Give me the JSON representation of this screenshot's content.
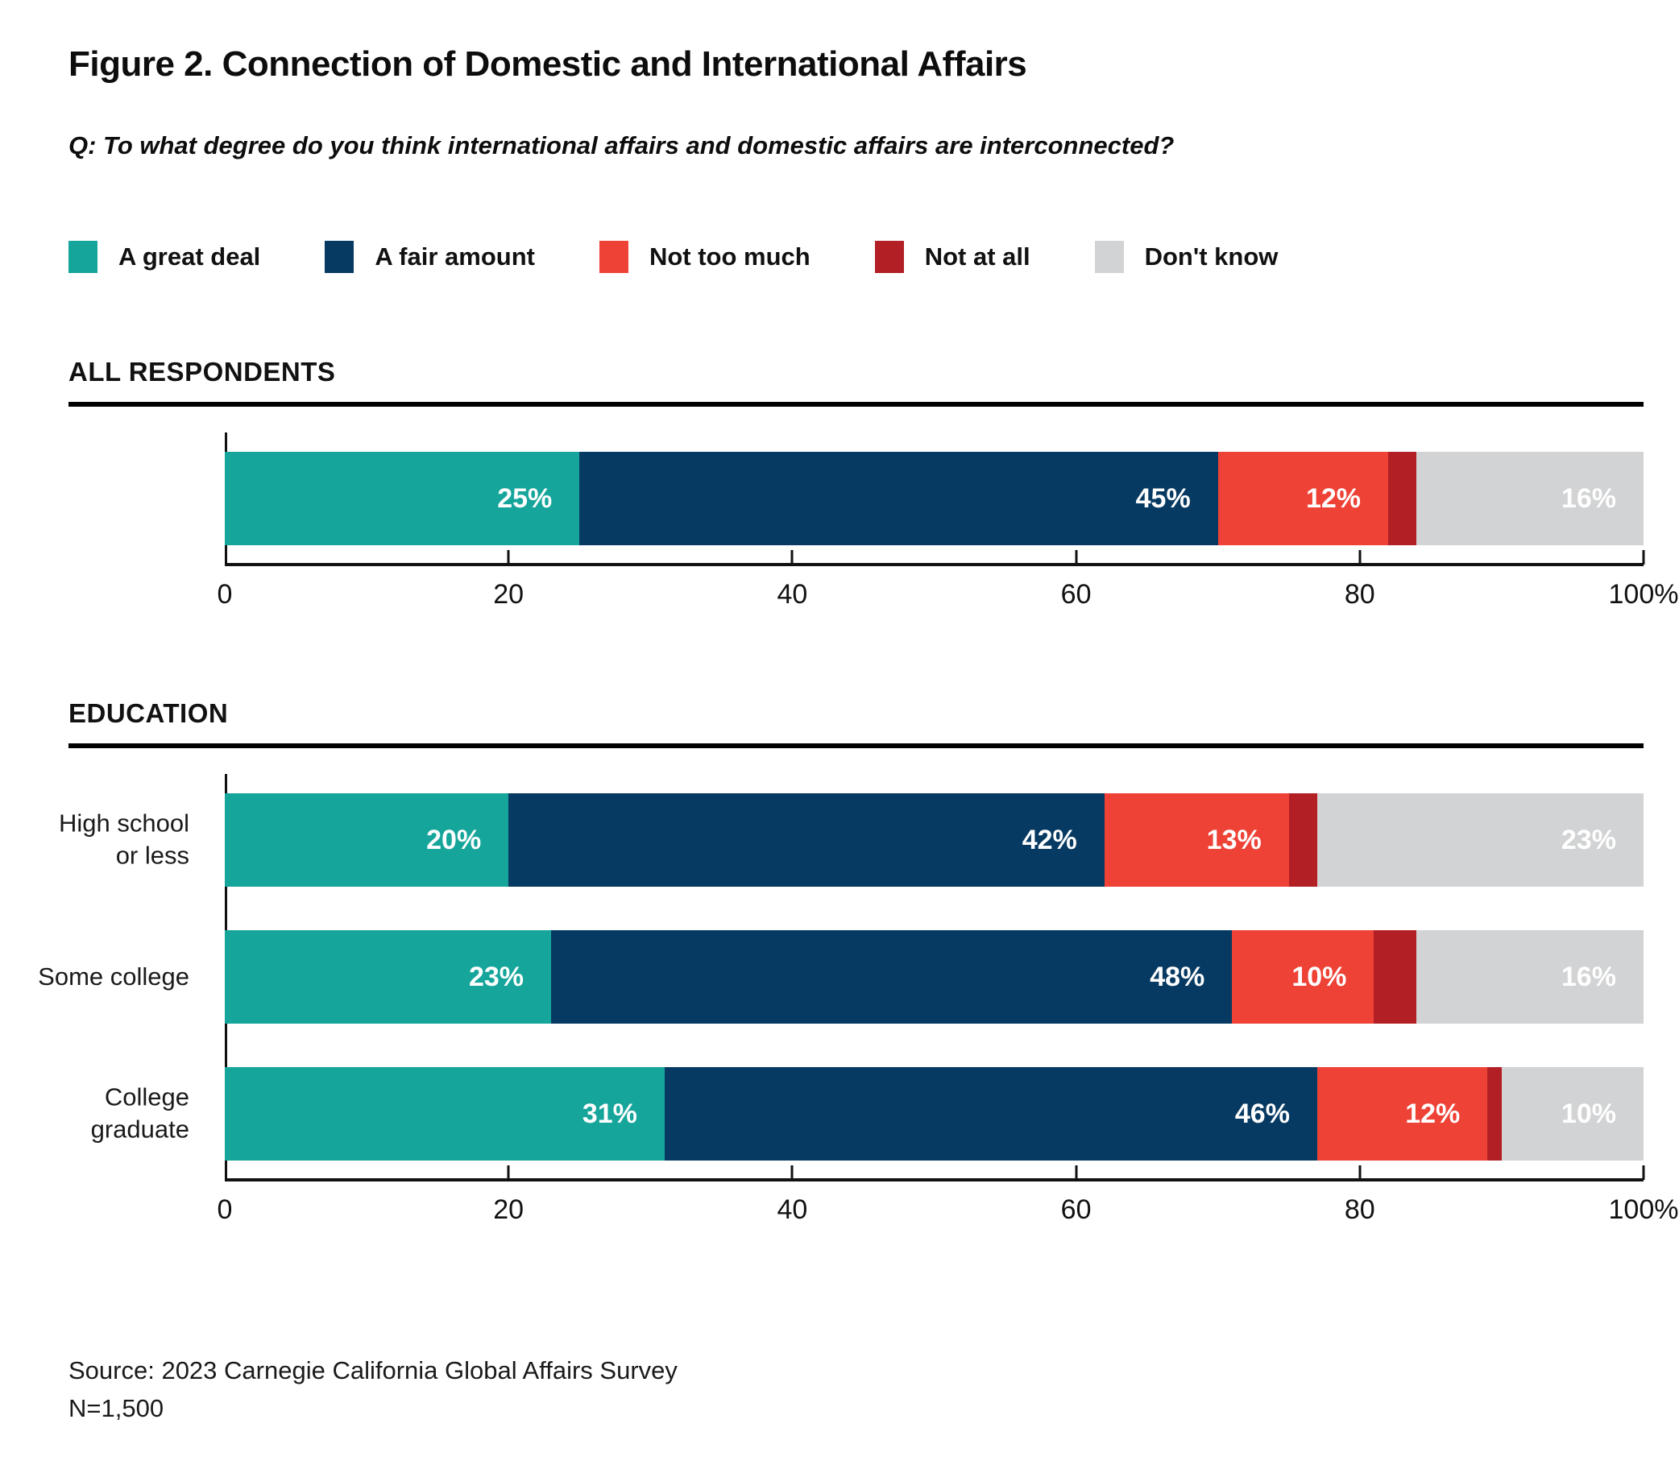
{
  "header": {
    "title": "Figure 2. Connection of Domestic and International Affairs",
    "question": "Q: To what degree do you think international affairs and domestic affairs are interconnected?"
  },
  "footer": {
    "source": "Source: 2023 Carnegie California Global Affairs Survey",
    "sample_size": "N=1,500"
  },
  "chart_data": {
    "type": "bar",
    "orientation": "horizontal_stacked",
    "unit": "%",
    "xlim": [
      0,
      100
    ],
    "x_ticks": [
      "0",
      "20",
      "40",
      "60",
      "80",
      "100%"
    ],
    "x_tick_positions": [
      0,
      20,
      40,
      60,
      80,
      100
    ],
    "grid": false,
    "legend_position": "top",
    "label_min_value": 10,
    "series_names": [
      "A great deal",
      "A fair amount",
      "Not too much",
      "Not at all",
      "Don't know"
    ],
    "series_colors": [
      "#16A59B",
      "#073A62",
      "#EF4236",
      "#B22025",
      "#D2D3D4"
    ],
    "groups": [
      {
        "section": "ALL RESPONDENTS",
        "rows": [
          {
            "label": "",
            "values": [
              25,
              45,
              12,
              2,
              16
            ]
          }
        ]
      },
      {
        "section": "EDUCATION",
        "rows": [
          {
            "label": "High school\nor less",
            "values": [
              20,
              42,
              13,
              2,
              23
            ]
          },
          {
            "label": "Some college",
            "values": [
              23,
              48,
              10,
              3,
              16
            ]
          },
          {
            "label": "College\ngraduate",
            "values": [
              31,
              46,
              12,
              1,
              10
            ]
          }
        ]
      }
    ]
  }
}
